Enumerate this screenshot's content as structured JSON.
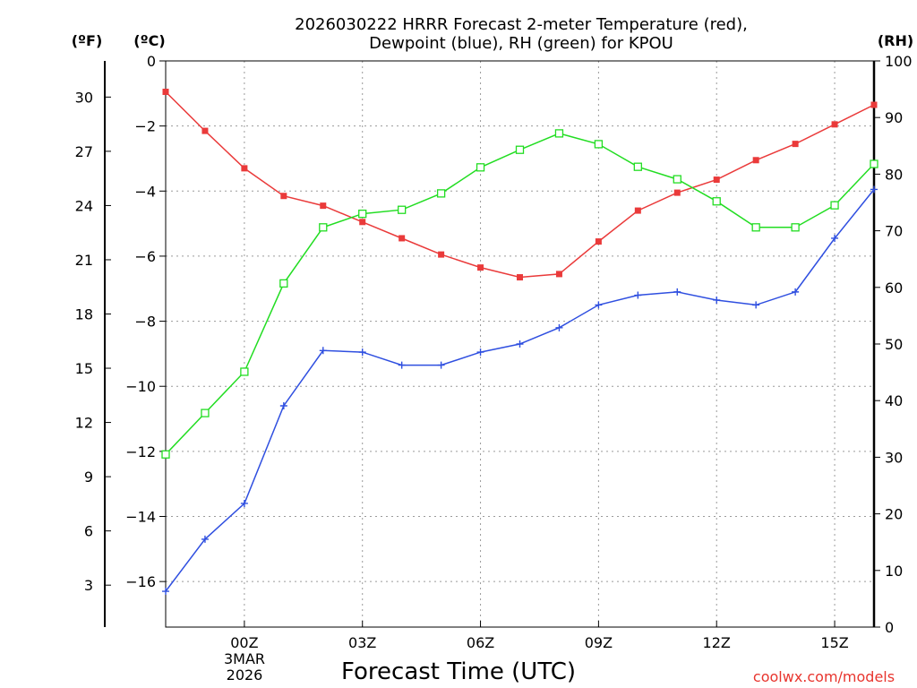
{
  "chart_data": {
    "type": "line",
    "title_line1": "2026030222 HRRR Forecast 2-meter Temperature (red),",
    "title_line2": "Dewpoint (blue), RH (green) for KPOU",
    "xlabel": "Forecast Time (UTC)",
    "credit": "coolwx.com/models",
    "units": {
      "fahrenheit": "(ºF)",
      "celsius": "(ºC)",
      "rh": "(RH)"
    },
    "x_hours": [
      -2,
      -1,
      0,
      1,
      2,
      3,
      4,
      5,
      6,
      7,
      8,
      9,
      10,
      11,
      12,
      13,
      14,
      15,
      16
    ],
    "xlim": [
      -2,
      16
    ],
    "x_ticks": [
      {
        "hour": 0,
        "label": "00Z"
      },
      {
        "hour": 3,
        "label": "03Z"
      },
      {
        "hour": 6,
        "label": "06Z"
      },
      {
        "hour": 9,
        "label": "09Z"
      },
      {
        "hour": 12,
        "label": "12Z"
      },
      {
        "hour": 15,
        "label": "15Z"
      }
    ],
    "date_label": {
      "line1": "3MAR",
      "line2": "2026"
    },
    "celsius_axis": {
      "range": [
        -17.4,
        0
      ],
      "ticks": [
        0,
        -2,
        -4,
        -6,
        -8,
        -10,
        -12,
        -14,
        -16
      ],
      "labels": [
        "0",
        "−2",
        "−4",
        "−6",
        "−8",
        "−10",
        "−12",
        "−14",
        "−16"
      ]
    },
    "fahrenheit_axis": {
      "ticks": [
        30,
        27,
        24,
        21,
        18,
        15,
        12,
        9,
        6,
        3
      ],
      "labels": [
        "30",
        "27",
        "24",
        "21",
        "18",
        "15",
        "12",
        "9",
        "6",
        "3"
      ]
    },
    "rh_axis": {
      "range": [
        0,
        100
      ],
      "ticks": [
        100,
        90,
        80,
        70,
        60,
        50,
        40,
        30,
        20,
        10,
        0
      ],
      "labels": [
        "100",
        "90",
        "80",
        "70",
        "60",
        "50",
        "40",
        "30",
        "20",
        "10",
        "0"
      ]
    },
    "series": [
      {
        "name": "Temperature",
        "axis": "celsius",
        "color": "#ea3a3a",
        "marker": "filled-square",
        "values": [
          -0.95,
          -2.15,
          -3.3,
          -4.15,
          -4.45,
          -4.95,
          -5.45,
          -5.95,
          -6.35,
          -6.65,
          -6.55,
          -5.55,
          -4.6,
          -4.05,
          -3.65,
          -3.05,
          -2.55,
          -1.95,
          -1.35
        ]
      },
      {
        "name": "Dewpoint",
        "axis": "celsius",
        "color": "#2f4fe0",
        "marker": "plus",
        "values": [
          -16.3,
          -14.7,
          -13.6,
          -10.6,
          -8.9,
          -8.95,
          -9.35,
          -9.35,
          -8.95,
          -8.7,
          -8.2,
          -7.5,
          -7.2,
          -7.1,
          -7.35,
          -7.5,
          -7.1,
          -5.45,
          -3.95
        ]
      },
      {
        "name": "RH",
        "axis": "rh",
        "color": "#22dd22",
        "marker": "open-square",
        "values": [
          30.5,
          37.8,
          45.1,
          60.7,
          70.6,
          73.0,
          73.7,
          76.6,
          81.2,
          84.3,
          87.2,
          85.3,
          81.3,
          79.1,
          75.2,
          70.6,
          70.6,
          74.5,
          81.8
        ]
      }
    ]
  }
}
